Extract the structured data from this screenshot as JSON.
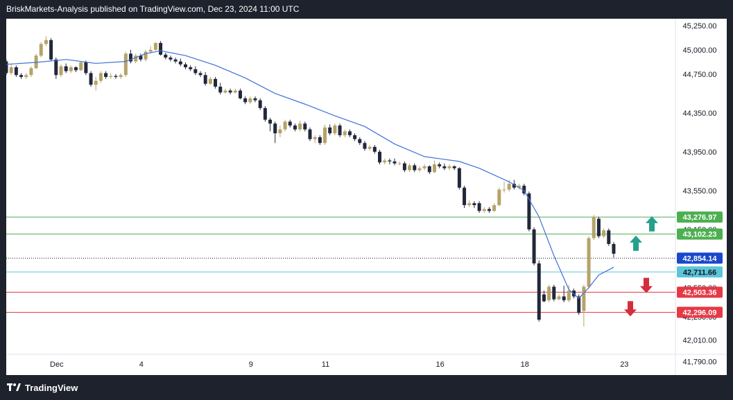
{
  "header": {
    "title": "BriskMarkets-Analysis published on TradingView.com, Dec 23, 2024 11:00 UTC"
  },
  "footer": {
    "brand": "TradingView"
  },
  "colors": {
    "up": "#b5a369",
    "down": "#22283a",
    "ma": "#3f6fd8",
    "resistance": "#4caf50",
    "support": "#e53946",
    "current": "#1848cc",
    "pivot": "#5bc5d9"
  },
  "chart_data": {
    "type": "candlestick",
    "title": "",
    "xlabel": "",
    "ylabel": "",
    "ylim": [
      41650,
      45320
    ],
    "x_ticks": [
      "Dec",
      "4",
      "9",
      "11",
      "16",
      "18",
      "23"
    ],
    "y_ticks": [
      "45,250.00",
      "45,000.00",
      "44,750.00",
      "44,350.00",
      "43,950.00",
      "43,550.00",
      "43,150.00",
      "42,550.00",
      "42,250.00",
      "42,010.00",
      "41,790.00"
    ],
    "candles": [
      [
        0,
        44880,
        44760,
        44900,
        44740
      ],
      [
        1,
        44760,
        44820,
        44860,
        44740
      ],
      [
        2,
        44820,
        44740,
        44840,
        44720
      ],
      [
        3,
        44740,
        44720,
        44760,
        44700
      ],
      [
        4,
        44720,
        44740,
        44760,
        44700
      ],
      [
        5,
        44740,
        44810,
        44830,
        44720
      ],
      [
        6,
        44810,
        44940,
        44960,
        44800
      ],
      [
        7,
        44940,
        45060,
        45080,
        44920
      ],
      [
        8,
        45060,
        45100,
        45140,
        45040
      ],
      [
        9,
        45100,
        44900,
        45120,
        44880
      ],
      [
        10,
        44900,
        44740,
        44920,
        44700
      ],
      [
        11,
        44740,
        44830,
        44850,
        44720
      ],
      [
        12,
        44830,
        44780,
        44860,
        44760
      ],
      [
        13,
        44780,
        44820,
        44840,
        44760
      ],
      [
        14,
        44820,
        44790,
        44830,
        44770
      ],
      [
        15,
        44790,
        44870,
        44880,
        44780
      ],
      [
        16,
        44870,
        44760,
        44890,
        44740
      ],
      [
        17,
        44760,
        44640,
        44780,
        44620
      ],
      [
        18,
        44640,
        44680,
        44720,
        44580
      ],
      [
        19,
        44680,
        44760,
        44780,
        44660
      ],
      [
        20,
        44760,
        44720,
        44780,
        44700
      ],
      [
        21,
        44720,
        44730,
        44760,
        44700
      ],
      [
        22,
        44730,
        44720,
        44750,
        44700
      ],
      [
        23,
        44720,
        44740,
        44760,
        44700
      ],
      [
        24,
        44740,
        44960,
        44980,
        44720
      ],
      [
        25,
        44960,
        44880,
        45000,
        44860
      ],
      [
        26,
        44880,
        44940,
        44960,
        44860
      ],
      [
        27,
        44940,
        44900,
        44960,
        44880
      ],
      [
        28,
        44900,
        44980,
        45000,
        44880
      ],
      [
        29,
        44980,
        45000,
        45040,
        44960
      ],
      [
        30,
        45000,
        45070,
        45080,
        44990
      ],
      [
        31,
        45070,
        44950,
        45090,
        44940
      ],
      [
        32,
        44950,
        44920,
        44970,
        44900
      ],
      [
        33,
        44920,
        44900,
        44940,
        44880
      ],
      [
        34,
        44900,
        44880,
        44920,
        44860
      ],
      [
        35,
        44880,
        44850,
        44910,
        44830
      ],
      [
        36,
        44850,
        44820,
        44870,
        44800
      ],
      [
        37,
        44820,
        44800,
        44840,
        44780
      ],
      [
        38,
        44800,
        44760,
        44830,
        44740
      ],
      [
        39,
        44760,
        44740,
        44780,
        44720
      ],
      [
        40,
        44740,
        44650,
        44770,
        44630
      ],
      [
        41,
        44650,
        44700,
        44720,
        44640
      ],
      [
        42,
        44700,
        44620,
        44720,
        44600
      ],
      [
        43,
        44620,
        44560,
        44660,
        44540
      ],
      [
        44,
        44560,
        44580,
        44600,
        44550
      ],
      [
        45,
        44580,
        44560,
        44600,
        44540
      ],
      [
        46,
        44560,
        44580,
        44600,
        44550
      ],
      [
        47,
        44580,
        44500,
        44600,
        44490
      ],
      [
        48,
        44500,
        44460,
        44520,
        44440
      ],
      [
        49,
        44460,
        44500,
        44520,
        44440
      ],
      [
        50,
        44500,
        44480,
        44520,
        44460
      ],
      [
        51,
        44480,
        44400,
        44500,
        44380
      ],
      [
        52,
        44400,
        44280,
        44420,
        44260
      ],
      [
        53,
        44280,
        44240,
        44300,
        44160
      ],
      [
        54,
        44240,
        44140,
        44260,
        44040
      ],
      [
        55,
        44140,
        44180,
        44220,
        44100
      ],
      [
        56,
        44180,
        44260,
        44280,
        44160
      ],
      [
        57,
        44260,
        44220,
        44280,
        44200
      ],
      [
        58,
        44220,
        44180,
        44240,
        44160
      ],
      [
        59,
        44180,
        44240,
        44270,
        44160
      ],
      [
        60,
        44240,
        44180,
        44260,
        44160
      ],
      [
        61,
        44180,
        44080,
        44200,
        44060
      ],
      [
        62,
        44080,
        44100,
        44120,
        44040
      ],
      [
        63,
        44100,
        44040,
        44120,
        44020
      ],
      [
        64,
        44040,
        44200,
        44230,
        44020
      ],
      [
        65,
        44200,
        44140,
        44230,
        44120
      ],
      [
        66,
        44140,
        44220,
        44240,
        44120
      ],
      [
        67,
        44220,
        44120,
        44240,
        44100
      ],
      [
        68,
        44120,
        44160,
        44180,
        44100
      ],
      [
        69,
        44160,
        44120,
        44180,
        44100
      ],
      [
        70,
        44120,
        44080,
        44140,
        44060
      ],
      [
        71,
        44080,
        44040,
        44100,
        44020
      ],
      [
        72,
        44040,
        43980,
        44060,
        43960
      ],
      [
        73,
        43980,
        44000,
        44020,
        43960
      ],
      [
        74,
        44000,
        43950,
        44020,
        43930
      ],
      [
        75,
        43950,
        43840,
        43970,
        43820
      ],
      [
        76,
        43840,
        43860,
        43880,
        43820
      ],
      [
        77,
        43860,
        43850,
        43880,
        43820
      ],
      [
        78,
        43850,
        43830,
        43880,
        43810
      ],
      [
        79,
        43830,
        43830,
        43850,
        43810
      ],
      [
        80,
        43830,
        43760,
        43850,
        43740
      ],
      [
        81,
        43760,
        43810,
        43830,
        43740
      ],
      [
        82,
        43810,
        43760,
        43830,
        43740
      ],
      [
        83,
        43760,
        43780,
        43800,
        43740
      ],
      [
        84,
        43780,
        43800,
        43820,
        43760
      ],
      [
        85,
        43800,
        43740,
        43810,
        43720
      ],
      [
        86,
        43740,
        43820,
        43860,
        43730
      ],
      [
        87,
        43820,
        43800,
        43840,
        43780
      ],
      [
        88,
        43800,
        43780,
        43830,
        43760
      ],
      [
        89,
        43780,
        43800,
        43820,
        43760
      ],
      [
        90,
        43800,
        43780,
        43810,
        43760
      ],
      [
        91,
        43780,
        43580,
        43790,
        43560
      ],
      [
        92,
        43580,
        43400,
        43600,
        43370
      ],
      [
        93,
        43400,
        43420,
        43450,
        43380
      ],
      [
        94,
        43420,
        43400,
        43440,
        43370
      ],
      [
        95,
        43420,
        43340,
        43440,
        43320
      ],
      [
        96,
        43340,
        43360,
        43380,
        43320
      ],
      [
        97,
        43360,
        43340,
        43380,
        43320
      ],
      [
        98,
        43340,
        43400,
        43420,
        43330
      ],
      [
        99,
        43400,
        43560,
        43580,
        43390
      ],
      [
        100,
        43560,
        43560,
        43640,
        43530
      ],
      [
        101,
        43560,
        43620,
        43660,
        43540
      ],
      [
        102,
        43620,
        43580,
        43660,
        43560
      ],
      [
        103,
        43580,
        43600,
        43620,
        43560
      ],
      [
        104,
        43600,
        43520,
        43620,
        43500
      ],
      [
        105,
        43520,
        43150,
        43540,
        43130
      ],
      [
        106,
        43150,
        42800,
        43170,
        42780
      ],
      [
        107,
        42800,
        42220,
        42830,
        42200
      ],
      [
        108,
        42480,
        42410,
        42520,
        42400
      ],
      [
        109,
        42420,
        42560,
        42580,
        42400
      ],
      [
        110,
        42560,
        42430,
        42580,
        42410
      ],
      [
        111,
        42430,
        42460,
        42480,
        42420
      ],
      [
        112,
        42460,
        42420,
        42570,
        42400
      ],
      [
        113,
        42420,
        42520,
        42580,
        42400
      ],
      [
        114,
        42520,
        42460,
        42540,
        42440
      ],
      [
        115,
        42460,
        42290,
        42480,
        42270
      ],
      [
        116,
        42310,
        42560,
        42580,
        42150
      ],
      [
        117,
        42560,
        43060,
        43080,
        42540
      ],
      [
        118,
        43060,
        43280,
        43300,
        43040
      ],
      [
        119,
        43260,
        43080,
        43280,
        43060
      ],
      [
        120,
        43080,
        43140,
        43160,
        43060
      ],
      [
        121,
        43140,
        43000,
        43160,
        42980
      ],
      [
        122,
        43000,
        42900,
        43020,
        42860
      ]
    ],
    "ma": [
      [
        0,
        44850
      ],
      [
        6,
        44870
      ],
      [
        12,
        44900
      ],
      [
        18,
        44860
      ],
      [
        24,
        44880
      ],
      [
        28,
        44960
      ],
      [
        31,
        44990
      ],
      [
        36,
        44940
      ],
      [
        42,
        44840
      ],
      [
        48,
        44710
      ],
      [
        54,
        44550
      ],
      [
        60,
        44440
      ],
      [
        66,
        44320
      ],
      [
        72,
        44210
      ],
      [
        78,
        44030
      ],
      [
        84,
        43900
      ],
      [
        91,
        43850
      ],
      [
        95,
        43780
      ],
      [
        101,
        43640
      ],
      [
        104,
        43550
      ],
      [
        107,
        43280
      ],
      [
        110,
        42880
      ],
      [
        113,
        42530
      ],
      [
        115,
        42440
      ],
      [
        117,
        42550
      ],
      [
        119,
        42680
      ],
      [
        122,
        42760
      ]
    ],
    "levels": [
      {
        "value": 43276.97,
        "label": "43,276.97",
        "kind": "resistance"
      },
      {
        "value": 43102.23,
        "label": "43,102.23",
        "kind": "resistance"
      },
      {
        "value": 42854.14,
        "label": "42,854.14",
        "kind": "current"
      },
      {
        "value": 42711.66,
        "label": "42,711.66",
        "kind": "pivot"
      },
      {
        "value": 42503.36,
        "label": "42,503.36",
        "kind": "support"
      },
      {
        "value": 42296.09,
        "label": "42,296.09",
        "kind": "support"
      }
    ],
    "arrows": [
      {
        "direction": "up",
        "color": "#26a08c"
      },
      {
        "direction": "up",
        "color": "#26a08c"
      },
      {
        "direction": "down",
        "color": "#d32f3a"
      },
      {
        "direction": "down",
        "color": "#d32f3a"
      }
    ],
    "grid": false
  }
}
